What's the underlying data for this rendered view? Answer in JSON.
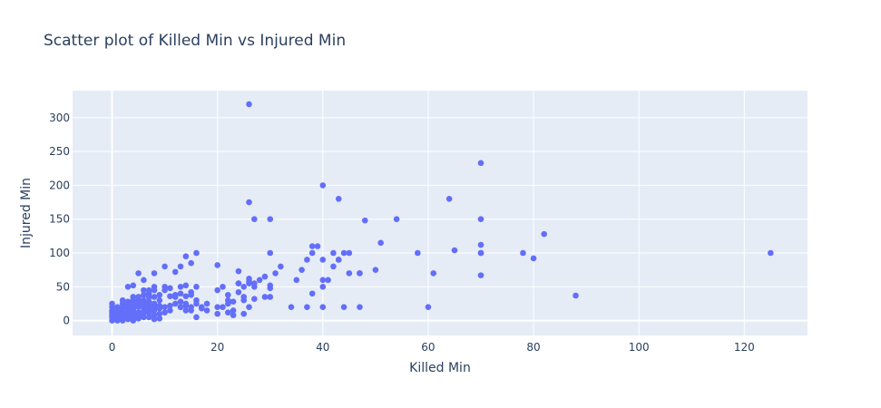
{
  "chart_data": {
    "type": "scatter",
    "title": "Scatter plot of Killed Min vs Injured Min",
    "xlabel": "Killed Min",
    "ylabel": "Injured Min",
    "xlim": [
      -7.5,
      132
    ],
    "ylim": [
      -22,
      340
    ],
    "xticks": [
      0,
      20,
      40,
      60,
      80,
      100,
      120
    ],
    "yticks": [
      0,
      50,
      100,
      150,
      200,
      250,
      300
    ],
    "grid": true,
    "colors": {
      "marker": "#636efa",
      "plot_bg": "#e5ecf6",
      "grid": "#ffffff",
      "text": "#2a3f5f"
    },
    "x": [
      0,
      0,
      0,
      0,
      0,
      0,
      0,
      1,
      1,
      1,
      1,
      1,
      1,
      2,
      2,
      2,
      2,
      2,
      2,
      2,
      3,
      3,
      3,
      3,
      3,
      3,
      4,
      4,
      4,
      4,
      4,
      4,
      4,
      4,
      5,
      5,
      5,
      5,
      5,
      5,
      5,
      6,
      6,
      6,
      6,
      6,
      6,
      6,
      6,
      7,
      7,
      7,
      7,
      7,
      7,
      7,
      8,
      8,
      8,
      8,
      8,
      8,
      8,
      8,
      9,
      9,
      9,
      9,
      9,
      9,
      4,
      5,
      6,
      3,
      4,
      5,
      6,
      7,
      8,
      10,
      11,
      12,
      13,
      14,
      15,
      16,
      17,
      18,
      10,
      11,
      12,
      13,
      14,
      15,
      16,
      17,
      18,
      10,
      11,
      12,
      13,
      14,
      15,
      16,
      10,
      12,
      13,
      14,
      15,
      16,
      13,
      14,
      15,
      16,
      4,
      5,
      6,
      8,
      8,
      10,
      11,
      13,
      14,
      20,
      21,
      22,
      23,
      24,
      25,
      26,
      20,
      21,
      22,
      23,
      24,
      25,
      26,
      27,
      20,
      22,
      24,
      26,
      28,
      25,
      27,
      29,
      23,
      27,
      30,
      22,
      25,
      26,
      24,
      29,
      30,
      31,
      32,
      35,
      36,
      37,
      38,
      38,
      38,
      40,
      40,
      41,
      42,
      43,
      44,
      45,
      47,
      50,
      20,
      30,
      30,
      40,
      40,
      42,
      43,
      45,
      47,
      48,
      26,
      26,
      27,
      30,
      34,
      37,
      39,
      40,
      43,
      44,
      47,
      51,
      54,
      58,
      60,
      61,
      64,
      65,
      70,
      70,
      70,
      70,
      70,
      70,
      78,
      80,
      82,
      88,
      125
    ],
    "y": [
      0,
      5,
      8,
      12,
      15,
      20,
      25,
      0,
      3,
      8,
      12,
      18,
      20,
      0,
      5,
      10,
      15,
      20,
      25,
      30,
      2,
      8,
      12,
      18,
      22,
      28,
      0,
      5,
      10,
      15,
      20,
      25,
      30,
      35,
      3,
      8,
      12,
      20,
      25,
      30,
      35,
      5,
      10,
      15,
      20,
      25,
      30,
      38,
      45,
      5,
      12,
      18,
      22,
      28,
      35,
      40,
      2,
      8,
      15,
      20,
      25,
      35,
      45,
      50,
      3,
      10,
      18,
      22,
      30,
      38,
      52,
      70,
      60,
      50,
      30,
      25,
      30,
      45,
      70,
      50,
      36,
      38,
      40,
      36,
      38,
      30,
      20,
      25,
      20,
      15,
      25,
      28,
      22,
      20,
      25,
      18,
      15,
      45,
      48,
      35,
      50,
      52,
      42,
      50,
      80,
      72,
      80,
      95,
      85,
      100,
      20,
      15,
      15,
      5,
      18,
      8,
      12,
      8,
      16,
      12,
      22,
      20,
      25,
      45,
      50,
      30,
      28,
      55,
      50,
      55,
      82,
      20,
      25,
      15,
      42,
      30,
      62,
      55,
      10,
      12,
      73,
      58,
      60,
      10,
      32,
      65,
      8,
      50,
      52,
      38,
      35,
      20,
      55,
      35,
      100,
      70,
      80,
      60,
      75,
      90,
      110,
      100,
      40,
      50,
      60,
      60,
      100,
      90,
      20,
      100,
      70,
      75,
      20,
      48,
      35,
      90,
      20,
      80,
      180,
      70,
      20,
      148,
      320,
      175,
      150,
      150,
      20,
      20,
      110,
      200,
      90,
      100,
      70,
      115,
      150,
      100,
      20,
      70,
      180,
      104,
      233,
      150,
      100,
      112,
      100,
      67,
      100,
      92,
      128,
      37,
      100
    ]
  }
}
